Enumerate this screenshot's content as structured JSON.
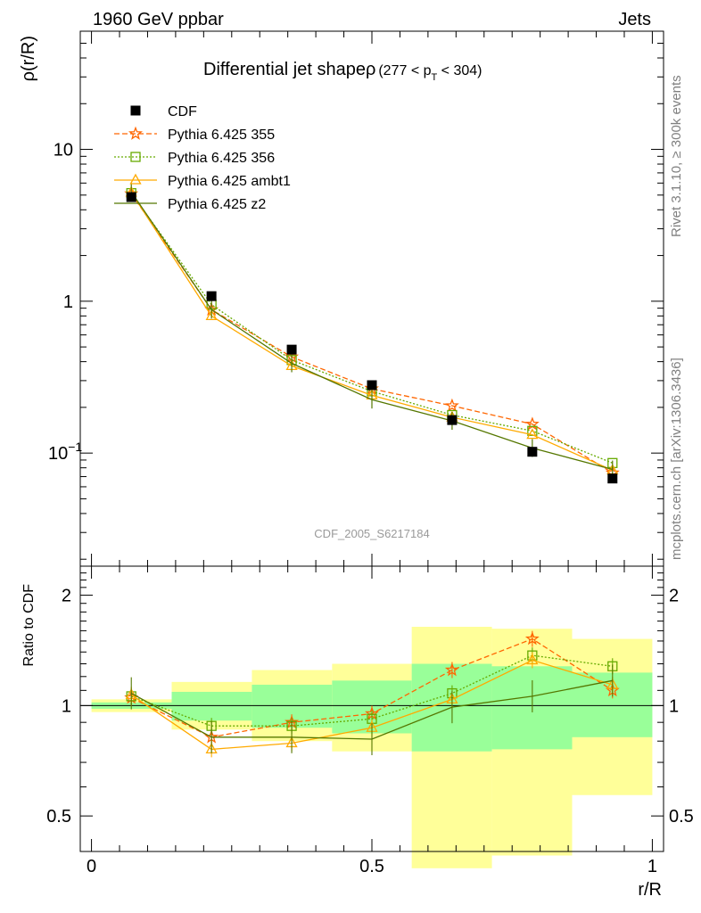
{
  "header": {
    "energy_label": "1960 GeV ppbar",
    "process_label": "Jets"
  },
  "side_labels": {
    "rivet": "Rivet 3.1.10, ≥ 300k events",
    "mcplots": "mcplots.cern.ch [arXiv:1306.3436]"
  },
  "analysis_id": "CDF_2005_S6217184",
  "chart_data": [
    {
      "type": "line",
      "title_main": "Differential jet shapeρ",
      "title_sub": "(277 < p",
      "title_sub_index": "T",
      "title_sub_end": " < 304)",
      "ylabel": "ρ(r/R)",
      "xlabel": "r/R",
      "yscale": "log",
      "xlim": [
        -0.02,
        1.02
      ],
      "ylim": [
        0.018,
        60
      ],
      "y_ticks": [
        {
          "v": 0.1,
          "label": "10",
          "sup": "−1"
        },
        {
          "v": 1,
          "label": "1",
          "sup": ""
        },
        {
          "v": 10,
          "label": "10",
          "sup": ""
        }
      ],
      "x": [
        0.071,
        0.214,
        0.357,
        0.5,
        0.643,
        0.786,
        0.929
      ],
      "data": {
        "name": "CDF",
        "values": [
          4.85,
          1.08,
          0.48,
          0.28,
          0.165,
          0.102,
          0.068
        ],
        "color": "#000000"
      },
      "series": [
        {
          "name": "Pythia 6.425 355",
          "marker": "star",
          "dash": "6,3",
          "color": "#ff6600",
          "values": [
            5.1,
            0.88,
            0.43,
            0.265,
            0.205,
            0.155,
            0.074
          ]
        },
        {
          "name": "Pythia 6.425 356",
          "marker": "square",
          "dash": "2,2",
          "color": "#66aa00",
          "values": [
            5.15,
            0.95,
            0.41,
            0.255,
            0.178,
            0.14,
            0.086
          ]
        },
        {
          "name": "Pythia 6.425 ambt1",
          "marker": "triangle",
          "dash": "",
          "color": "#ffaa00",
          "values": [
            5.2,
            0.8,
            0.375,
            0.24,
            0.172,
            0.132,
            0.077
          ]
        },
        {
          "name": "Pythia 6.425 z2",
          "marker": "none",
          "dash": "",
          "color": "#557700",
          "values": [
            5.25,
            0.88,
            0.39,
            0.225,
            0.163,
            0.108,
            0.078
          ]
        }
      ]
    },
    {
      "type": "line",
      "ylabel": "Ratio to CDF",
      "xlabel": "r/R",
      "yscale": "log",
      "xlim": [
        -0.02,
        1.02
      ],
      "ylim": [
        0.4,
        2.4
      ],
      "y_ticks": [
        {
          "v": 0.5,
          "label": "0.5"
        },
        {
          "v": 1,
          "label": "1"
        },
        {
          "v": 2,
          "label": "2"
        }
      ],
      "x_ticks": [
        {
          "v": 0,
          "label": "0"
        },
        {
          "v": 0.5,
          "label": "0.5"
        },
        {
          "v": 1,
          "label": "1"
        }
      ],
      "x": [
        0.071,
        0.214,
        0.357,
        0.5,
        0.643,
        0.786,
        0.929
      ],
      "bins": [
        [
          0,
          0.143
        ],
        [
          0.143,
          0.286
        ],
        [
          0.286,
          0.429
        ],
        [
          0.429,
          0.571
        ],
        [
          0.571,
          0.714
        ],
        [
          0.714,
          0.857
        ],
        [
          0.857,
          1.0
        ]
      ],
      "band_outer": [
        [
          0.96,
          1.04
        ],
        [
          0.86,
          1.16
        ],
        [
          0.8,
          1.25
        ],
        [
          0.75,
          1.3
        ],
        [
          0.36,
          1.64
        ],
        [
          0.39,
          1.62
        ],
        [
          0.57,
          1.52
        ]
      ],
      "band_inner": [
        [
          0.98,
          1.02
        ],
        [
          0.91,
          1.09
        ],
        [
          0.87,
          1.14
        ],
        [
          0.84,
          1.17
        ],
        [
          0.75,
          1.3
        ],
        [
          0.76,
          1.28
        ],
        [
          0.82,
          1.23
        ]
      ],
      "series": [
        {
          "name": "Pythia 6.425 355",
          "values": [
            1.05,
            0.82,
            0.9,
            0.95,
            1.25,
            1.52,
            1.1
          ]
        },
        {
          "name": "Pythia 6.425 356",
          "values": [
            1.06,
            0.88,
            0.88,
            0.92,
            1.08,
            1.37,
            1.28
          ]
        },
        {
          "name": "Pythia 6.425 ambt1",
          "values": [
            1.07,
            0.76,
            0.79,
            0.87,
            1.04,
            1.33,
            1.14
          ]
        },
        {
          "name": "Pythia 6.425 z2",
          "values": [
            1.08,
            0.82,
            0.82,
            0.81,
            0.99,
            1.06,
            1.17
          ]
        }
      ]
    }
  ]
}
